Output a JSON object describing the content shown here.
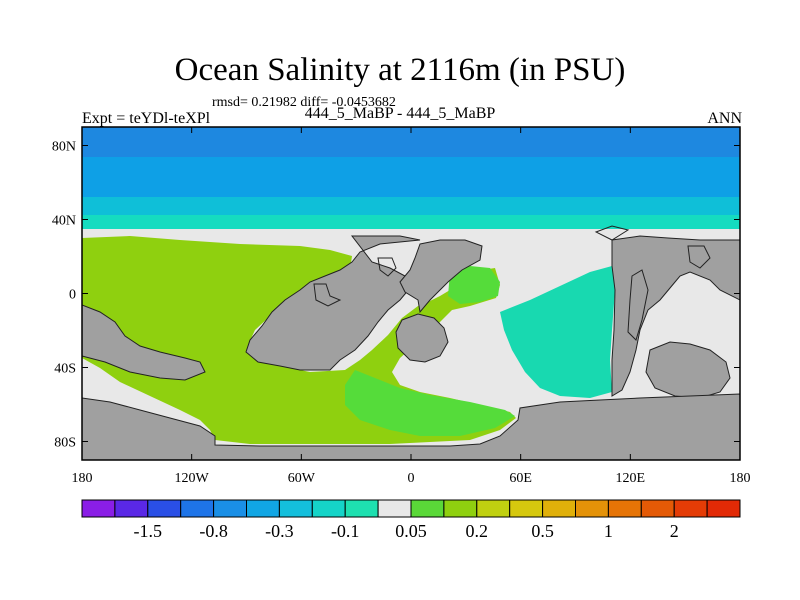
{
  "title": "Ocean Salinity at 2116m (in PSU)",
  "stats": "rmsd= 0.21982 diff= -0.0453682",
  "left_label": "Expt = teYDl-teXPl",
  "center_label": "444_5_MaBP - 444_5_MaBP",
  "right_label": "ANN",
  "map": {
    "lon_range": [
      -180,
      180
    ],
    "lat_range": [
      -90,
      90
    ],
    "lat_ticks": [
      {
        "value": 80,
        "label": "80N"
      },
      {
        "value": 40,
        "label": "40N"
      },
      {
        "value": 0,
        "label": "0"
      },
      {
        "value": -40,
        "label": "40S"
      },
      {
        "value": -80,
        "label": "80S"
      }
    ],
    "lon_ticks": [
      {
        "value": -180,
        "label": "180"
      },
      {
        "value": -120,
        "label": "120W"
      },
      {
        "value": -60,
        "label": "60W"
      },
      {
        "value": 0,
        "label": "0"
      },
      {
        "value": 60,
        "label": "60E"
      },
      {
        "value": 120,
        "label": "120E"
      },
      {
        "value": 180,
        "label": "180"
      }
    ],
    "colors": {
      "land": "#a0a0a0",
      "north_band_1": "#1e88e0",
      "north_band_2": "#0ea0e6",
      "north_band_3": "#0fbfd8",
      "north_band_4": "#15dcc0",
      "near_zero": "#e8e8e8",
      "positive_green": "#8fd00f",
      "positive_green_light": "#55dc3a",
      "teal": "#18d9b0"
    }
  },
  "colorbar": {
    "colors": [
      "#8a1ee6",
      "#5a28e6",
      "#2a4fe6",
      "#1e74e8",
      "#1a8fe6",
      "#11a6e4",
      "#14bfdc",
      "#15d4c8",
      "#1ee0b0",
      "#e8e8e8",
      "#5ad838",
      "#8fd00f",
      "#c0d010",
      "#d6c80e",
      "#e0b00a",
      "#e49208",
      "#e67406",
      "#e45a06",
      "#e43c06",
      "#e22a06"
    ],
    "labels": [
      "-1.5",
      "-0.8",
      "-0.3",
      "-0.1",
      "0.05",
      "0.2",
      "0.5",
      "1",
      "2"
    ],
    "label_boundaries": [
      2,
      4,
      6,
      8,
      10,
      12,
      14,
      16,
      18
    ]
  }
}
